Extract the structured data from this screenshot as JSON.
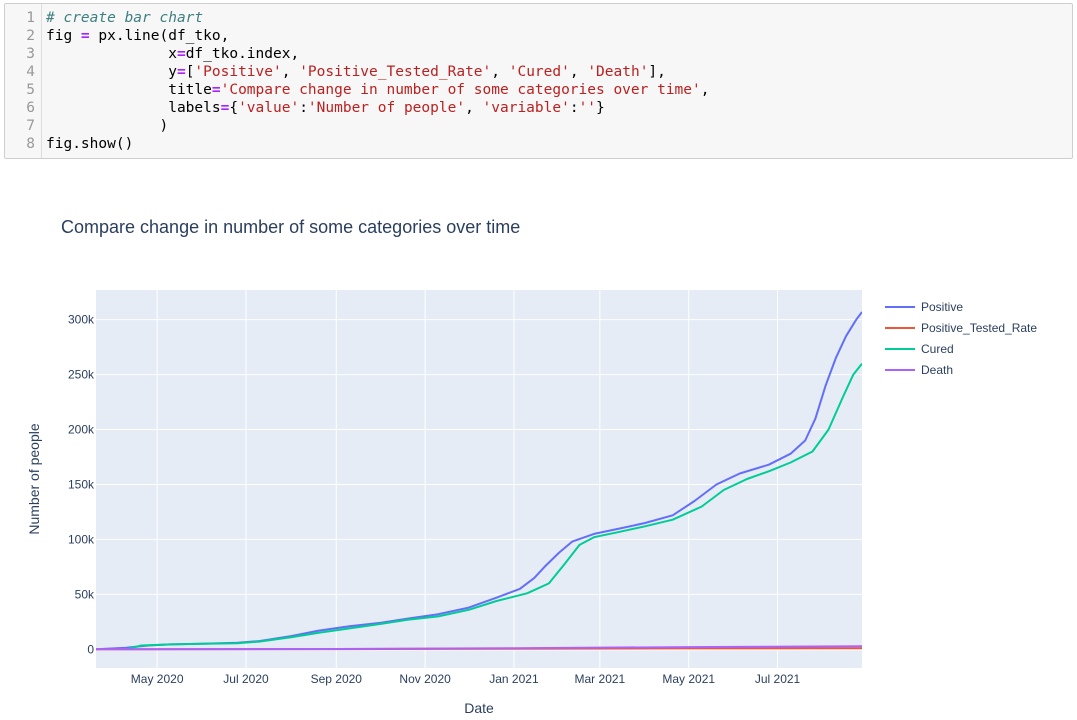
{
  "code": {
    "lines": [
      {
        "num": "1",
        "parts": [
          {
            "t": "# create bar chart",
            "c": "kw-c"
          }
        ]
      },
      {
        "num": "2",
        "parts": [
          {
            "t": "fig "
          },
          {
            "t": "=",
            "c": "op"
          },
          {
            "t": " px.line(df_tko,"
          }
        ]
      },
      {
        "num": "3",
        "parts": [
          {
            "t": "              x"
          },
          {
            "t": "=",
            "c": "op"
          },
          {
            "t": "df_tko.index,"
          }
        ]
      },
      {
        "num": "4",
        "parts": [
          {
            "t": "              y"
          },
          {
            "t": "=",
            "c": "op"
          },
          {
            "t": "["
          },
          {
            "t": "'Positive'",
            "c": "str"
          },
          {
            "t": ", "
          },
          {
            "t": "'Positive_Tested_Rate'",
            "c": "str"
          },
          {
            "t": ", "
          },
          {
            "t": "'Cured'",
            "c": "str"
          },
          {
            "t": ", "
          },
          {
            "t": "'Death'",
            "c": "str"
          },
          {
            "t": "],"
          }
        ]
      },
      {
        "num": "5",
        "parts": [
          {
            "t": "              title"
          },
          {
            "t": "=",
            "c": "op"
          },
          {
            "t": "'Compare change in number of some categories over time'",
            "c": "str"
          },
          {
            "t": ","
          }
        ]
      },
      {
        "num": "6",
        "parts": [
          {
            "t": "              labels"
          },
          {
            "t": "=",
            "c": "op"
          },
          {
            "t": "{"
          },
          {
            "t": "'value'",
            "c": "str"
          },
          {
            "t": ":"
          },
          {
            "t": "'Number of people'",
            "c": "str"
          },
          {
            "t": ", "
          },
          {
            "t": "'variable'",
            "c": "str"
          },
          {
            "t": ":"
          },
          {
            "t": "''",
            "c": "str"
          },
          {
            "t": "}"
          }
        ]
      },
      {
        "num": "7",
        "parts": [
          {
            "t": "             )"
          }
        ]
      },
      {
        "num": "8",
        "parts": [
          {
            "t": "fig.show()"
          }
        ]
      }
    ]
  },
  "chart_data": {
    "type": "line",
    "title": "Compare change in number of some categories over time",
    "xlabel": "Date",
    "ylabel": "Number of people",
    "x_range": [
      "2020-03-20",
      "2021-08-28"
    ],
    "ylim": [
      -17000,
      327000
    ],
    "x_ticks": [
      {
        "date": "2020-05-01",
        "label": "May 2020"
      },
      {
        "date": "2020-07-01",
        "label": "Jul 2020"
      },
      {
        "date": "2020-09-01",
        "label": "Sep 2020"
      },
      {
        "date": "2020-11-01",
        "label": "Nov 2020"
      },
      {
        "date": "2021-01-01",
        "label": "Jan 2021"
      },
      {
        "date": "2021-03-01",
        "label": "Mar 2021"
      },
      {
        "date": "2021-05-01",
        "label": "May 2021"
      },
      {
        "date": "2021-07-01",
        "label": "Jul 2021"
      }
    ],
    "y_ticks": [
      {
        "value": 0,
        "label": "0"
      },
      {
        "value": 50000,
        "label": "50k"
      },
      {
        "value": 100000,
        "label": "100k"
      },
      {
        "value": 150000,
        "label": "150k"
      },
      {
        "value": 200000,
        "label": "200k"
      },
      {
        "value": 250000,
        "label": "250k"
      },
      {
        "value": 300000,
        "label": "300k"
      }
    ],
    "grid": true,
    "legend_position": "right",
    "plot_bg": "#e5ecf6",
    "series": [
      {
        "name": "Positive",
        "color": "#636efa",
        "points": [
          [
            "2020-03-20",
            0
          ],
          [
            "2020-04-10",
            1500
          ],
          [
            "2020-04-25",
            3500
          ],
          [
            "2020-05-10",
            4500
          ],
          [
            "2020-06-01",
            5000
          ],
          [
            "2020-06-25",
            6000
          ],
          [
            "2020-07-10",
            7500
          ],
          [
            "2020-08-01",
            12000
          ],
          [
            "2020-08-20",
            17000
          ],
          [
            "2020-09-10",
            21000
          ],
          [
            "2020-10-01",
            24000
          ],
          [
            "2020-10-20",
            28000
          ],
          [
            "2020-11-10",
            32000
          ],
          [
            "2020-12-01",
            38000
          ],
          [
            "2020-12-20",
            47000
          ],
          [
            "2021-01-05",
            55000
          ],
          [
            "2021-01-15",
            65000
          ],
          [
            "2021-01-22",
            75000
          ],
          [
            "2021-02-01",
            88000
          ],
          [
            "2021-02-10",
            98000
          ],
          [
            "2021-02-25",
            105000
          ],
          [
            "2021-03-15",
            110000
          ],
          [
            "2021-04-01",
            115000
          ],
          [
            "2021-04-20",
            122000
          ],
          [
            "2021-05-05",
            135000
          ],
          [
            "2021-05-20",
            150000
          ],
          [
            "2021-06-05",
            160000
          ],
          [
            "2021-06-25",
            168000
          ],
          [
            "2021-07-10",
            178000
          ],
          [
            "2021-07-20",
            190000
          ],
          [
            "2021-07-27",
            210000
          ],
          [
            "2021-08-03",
            240000
          ],
          [
            "2021-08-10",
            265000
          ],
          [
            "2021-08-17",
            285000
          ],
          [
            "2021-08-24",
            300000
          ],
          [
            "2021-08-28",
            307000
          ]
        ]
      },
      {
        "name": "Positive_Tested_Rate",
        "color": "#ef553b",
        "points": [
          [
            "2020-03-20",
            0
          ],
          [
            "2020-09-01",
            200
          ],
          [
            "2021-01-01",
            500
          ],
          [
            "2021-05-01",
            800
          ],
          [
            "2021-08-28",
            900
          ]
        ]
      },
      {
        "name": "Cured",
        "color": "#00cc96",
        "points": [
          [
            "2020-04-10",
            0
          ],
          [
            "2020-04-20",
            3500
          ],
          [
            "2020-05-10",
            4500
          ],
          [
            "2020-06-01",
            5000
          ],
          [
            "2020-06-25",
            5500
          ],
          [
            "2020-07-10",
            7000
          ],
          [
            "2020-08-01",
            11000
          ],
          [
            "2020-08-20",
            15000
          ],
          [
            "2020-09-10",
            19000
          ],
          [
            "2020-10-01",
            23000
          ],
          [
            "2020-10-20",
            27000
          ],
          [
            "2020-11-10",
            30000
          ],
          [
            "2020-12-01",
            36000
          ],
          [
            "2020-12-20",
            44000
          ],
          [
            "2021-01-10",
            51000
          ],
          [
            "2021-01-25",
            60000
          ],
          [
            "2021-02-05",
            78000
          ],
          [
            "2021-02-15",
            95000
          ],
          [
            "2021-02-25",
            102000
          ],
          [
            "2021-03-15",
            107000
          ],
          [
            "2021-04-01",
            112000
          ],
          [
            "2021-04-20",
            118000
          ],
          [
            "2021-05-10",
            130000
          ],
          [
            "2021-05-25",
            145000
          ],
          [
            "2021-06-10",
            155000
          ],
          [
            "2021-06-25",
            162000
          ],
          [
            "2021-07-10",
            170000
          ],
          [
            "2021-07-25",
            180000
          ],
          [
            "2021-08-05",
            200000
          ],
          [
            "2021-08-15",
            230000
          ],
          [
            "2021-08-22",
            250000
          ],
          [
            "2021-08-28",
            260000
          ]
        ]
      },
      {
        "name": "Death",
        "color": "#ab63fa",
        "points": [
          [
            "2020-03-20",
            0
          ],
          [
            "2020-09-01",
            300
          ],
          [
            "2021-01-01",
            1000
          ],
          [
            "2021-05-01",
            2000
          ],
          [
            "2021-08-28",
            2800
          ]
        ]
      }
    ]
  }
}
